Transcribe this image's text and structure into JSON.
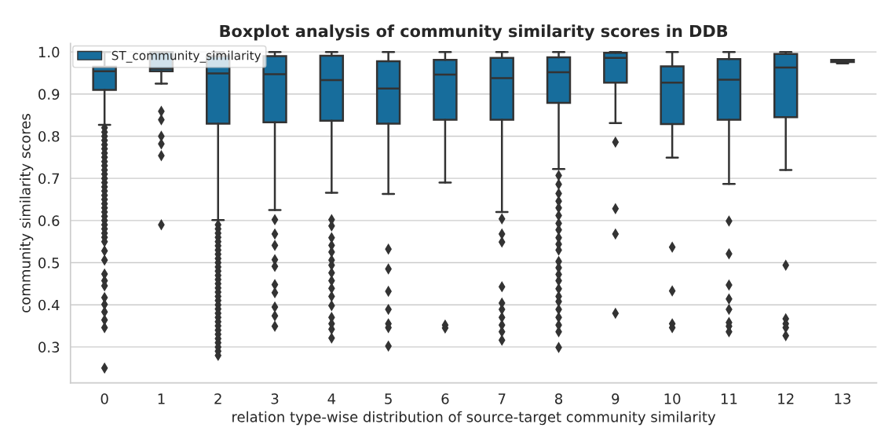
{
  "chart_data": {
    "type": "box",
    "title": "Boxplot analysis of community similarity scores in DDB",
    "xlabel": "relation type-wise distribution of source-target community similarity",
    "ylabel": "community similarity scores",
    "categories": [
      "0",
      "1",
      "2",
      "3",
      "4",
      "5",
      "6",
      "7",
      "8",
      "9",
      "10",
      "11",
      "12",
      "13"
    ],
    "ylim": [
      0.215,
      1.02
    ],
    "yticks": [
      0.3,
      0.4,
      0.5,
      0.6,
      0.7,
      0.8,
      0.9,
      {
        "value": 1.0,
        "label": "1.0"
      }
    ],
    "grid": "y",
    "legend": "top left",
    "marker": "diamond",
    "series": [
      {
        "name": "ST_community_similarity",
        "color": "#176d9c",
        "boxes": [
          {
            "low": 0.827,
            "q1": 0.91,
            "median": 0.954,
            "q3": 0.965,
            "high": 1.0,
            "outliers": [
              0.82,
              0.81,
              0.8,
              0.79,
              0.78,
              0.77,
              0.76,
              0.75,
              0.74,
              0.73,
              0.72,
              0.71,
              0.7,
              0.69,
              0.68,
              0.67,
              0.66,
              0.65,
              0.64,
              0.63,
              0.62,
              0.61,
              0.6,
              0.59,
              0.58,
              0.57,
              0.56,
              0.55,
              0.528,
              0.506,
              0.473,
              0.457,
              0.445,
              0.417,
              0.401,
              0.383,
              0.364,
              0.346,
              0.25
            ]
          },
          {
            "low": 0.925,
            "q1": 0.954,
            "median": 0.96,
            "q3": 1.0,
            "high": 1.0,
            "outliers": [
              0.859,
              0.839,
              0.8,
              0.782,
              0.754,
              0.59
            ]
          },
          {
            "low": 0.601,
            "q1": 0.83,
            "median": 0.949,
            "q3": 0.99,
            "high": 1.0,
            "outliers": [
              0.59,
              0.58,
              0.57,
              0.56,
              0.55,
              0.54,
              0.53,
              0.52,
              0.51,
              0.5,
              0.49,
              0.48,
              0.47,
              0.46,
              0.45,
              0.44,
              0.43,
              0.42,
              0.41,
              0.4,
              0.39,
              0.38,
              0.37,
              0.36,
              0.35,
              0.34,
              0.33,
              0.32,
              0.31,
              0.3,
              0.29,
              0.28
            ]
          },
          {
            "low": 0.625,
            "q1": 0.833,
            "median": 0.947,
            "q3": 0.99,
            "high": 1.0,
            "outliers": [
              0.602,
              0.568,
              0.541,
              0.507,
              0.491,
              0.448,
              0.429,
              0.395,
              0.374,
              0.349
            ]
          },
          {
            "low": 0.666,
            "q1": 0.837,
            "median": 0.933,
            "q3": 0.991,
            "high": 1.0,
            "outliers": [
              0.602,
              0.587,
              0.559,
              0.541,
              0.525,
              0.506,
              0.494,
              0.476,
              0.457,
              0.439,
              0.42,
              0.398,
              0.37,
              0.355,
              0.342,
              0.321
            ]
          },
          {
            "low": 0.663,
            "q1": 0.83,
            "median": 0.913,
            "q3": 0.978,
            "high": 1.0,
            "outliers": [
              0.532,
              0.485,
              0.432,
              0.389,
              0.355,
              0.346,
              0.302
            ]
          },
          {
            "low": 0.69,
            "q1": 0.839,
            "median": 0.946,
            "q3": 0.981,
            "high": 1.0,
            "outliers": [
              0.352,
              0.345
            ]
          },
          {
            "low": 0.62,
            "q1": 0.839,
            "median": 0.938,
            "q3": 0.986,
            "high": 1.0,
            "outliers": [
              0.604,
              0.568,
              0.549,
              0.443,
              0.404,
              0.389,
              0.37,
              0.352,
              0.336,
              0.316
            ]
          },
          {
            "low": 0.722,
            "q1": 0.879,
            "median": 0.952,
            "q3": 0.987,
            "high": 1.0,
            "outliers": [
              0.707,
              0.686,
              0.664,
              0.646,
              0.63,
              0.612,
              0.593,
              0.578,
              0.559,
              0.544,
              0.53,
              0.503,
              0.488,
              0.472,
              0.457,
              0.438,
              0.42,
              0.408,
              0.389,
              0.37,
              0.352,
              0.336,
              0.299
            ]
          },
          {
            "low": 0.831,
            "q1": 0.927,
            "median": 0.986,
            "q3": 0.998,
            "high": 1.0,
            "outliers": [
              0.786,
              0.628,
              0.568,
              0.38
            ]
          },
          {
            "low": 0.749,
            "q1": 0.829,
            "median": 0.927,
            "q3": 0.966,
            "high": 1.0,
            "outliers": [
              0.537,
              0.433,
              0.355,
              0.346
            ]
          },
          {
            "low": 0.687,
            "q1": 0.839,
            "median": 0.934,
            "q3": 0.983,
            "high": 1.0,
            "outliers": [
              0.599,
              0.521,
              0.447,
              0.414,
              0.389,
              0.358,
              0.349,
              0.336
            ]
          },
          {
            "low": 0.72,
            "q1": 0.845,
            "median": 0.963,
            "q3": 0.995,
            "high": 1.0,
            "outliers": [
              0.494,
              0.367,
              0.355,
              0.346,
              0.327
            ]
          },
          {
            "low": 0.973,
            "q1": 0.976,
            "median": 0.978,
            "q3": 0.981,
            "high": 0.981
          }
        ]
      }
    ]
  }
}
